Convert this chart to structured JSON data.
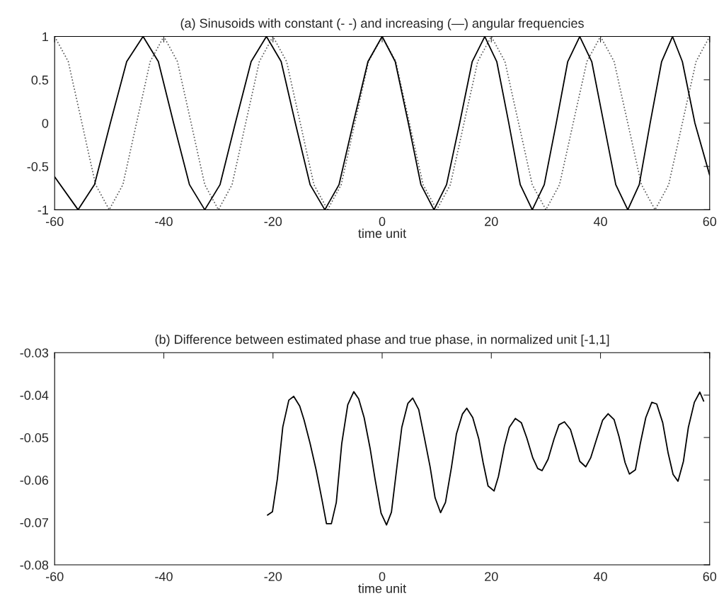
{
  "chart_data": [
    {
      "type": "line",
      "title": "(a) Sinusoids with constant (- -) and increasing (—) angular frequencies",
      "xlabel": "time unit",
      "xlim": [
        -60,
        60
      ],
      "ylim": [
        -1,
        1
      ],
      "xticks": [
        -60,
        -40,
        -20,
        0,
        20,
        40,
        60
      ],
      "yticks": [
        -1,
        -0.5,
        0,
        0.5,
        1
      ],
      "series": [
        {
          "color": "#555555",
          "line_style": "dotted",
          "x": [
            -60,
            -57.5,
            -55,
            -52.5,
            -50,
            -47.5,
            -45,
            -42.5,
            -40,
            -37.5,
            -35,
            -32.5,
            -30,
            -27.5,
            -25,
            -22.5,
            -20,
            -17.5,
            -15,
            -12.5,
            -10,
            -7.5,
            -5,
            -2.5,
            0,
            2.5,
            5,
            7.5,
            10,
            12.5,
            15,
            17.5,
            20,
            22.5,
            25,
            27.5,
            30,
            32.5,
            35,
            37.5,
            40,
            42.5,
            45,
            47.5,
            50,
            52.5,
            55,
            57.5,
            60
          ],
          "values": [
            1,
            0.71,
            0,
            -0.71,
            -1,
            -0.71,
            0,
            0.71,
            1,
            0.71,
            0,
            -0.71,
            -1,
            -0.71,
            0,
            0.71,
            1,
            0.71,
            0,
            -0.71,
            -1,
            -0.71,
            0,
            0.71,
            1,
            0.71,
            0,
            -0.71,
            -1,
            -0.71,
            0,
            0.71,
            1,
            0.71,
            0,
            -0.71,
            -1,
            -0.71,
            0,
            0.71,
            1,
            0.71,
            0,
            -0.71,
            -1,
            -0.71,
            0,
            0.71,
            1
          ]
        },
        {
          "color": "#000000",
          "line_style": "solid",
          "x": [
            -60,
            -55.7,
            -52.7,
            -49.8,
            -46.8,
            -43.8,
            -41.0,
            -38.2,
            -35.3,
            -32.5,
            -29.7,
            -26.9,
            -24.0,
            -21.2,
            -18.5,
            -15.9,
            -13.2,
            -10.5,
            -7.9,
            -5.3,
            -2.6,
            0,
            2.4,
            4.8,
            7.1,
            9.5,
            11.8,
            14.2,
            16.5,
            18.8,
            21.0,
            23.2,
            25.3,
            27.5,
            29.7,
            31.9,
            34.0,
            36.2,
            38.4,
            40.6,
            42.8,
            45,
            47.1,
            49.1,
            51.2,
            53.2,
            55.0,
            57.3,
            60
          ],
          "values": [
            -0.62,
            -1,
            -0.71,
            0,
            0.71,
            1,
            0.71,
            0,
            -0.71,
            -1,
            -0.71,
            0,
            0.71,
            1,
            0.71,
            0,
            -0.71,
            -1,
            -0.71,
            0,
            0.71,
            1,
            0.71,
            0,
            -0.71,
            -1,
            -0.71,
            0,
            0.71,
            1,
            0.71,
            0,
            -0.71,
            -1,
            -0.71,
            0,
            0.71,
            1,
            0.71,
            0,
            -0.71,
            -1,
            -0.71,
            0,
            0.71,
            1,
            0.71,
            0,
            -0.6
          ]
        }
      ]
    },
    {
      "type": "line",
      "title": "(b) Difference between estimated phase and true phase, in normalized unit [-1,1]",
      "xlabel": "time unit",
      "xlim": [
        -60,
        60
      ],
      "ylim": [
        -0.08,
        -0.03
      ],
      "xticks": [
        -60,
        -40,
        -20,
        0,
        20,
        40,
        60
      ],
      "yticks": [
        -0.08,
        -0.07,
        -0.06,
        -0.05,
        -0.04,
        -0.03
      ],
      "series": [
        {
          "color": "#000000",
          "line_style": "solid",
          "x": [
            -21.0,
            -20.1,
            -19.2,
            -18.2,
            -17.1,
            -16.2,
            -15.1,
            -14.3,
            -13.2,
            -12.1,
            -11.0,
            -10.2,
            -9.3,
            -8.4,
            -7.4,
            -6.3,
            -5.2,
            -4.3,
            -3.3,
            -2.2,
            -1.3,
            -0.2,
            0.8,
            1.7,
            2.8,
            3.6,
            4.7,
            5.6,
            6.7,
            7.7,
            8.8,
            9.7,
            10.7,
            11.6,
            12.7,
            13.6,
            14.7,
            15.5,
            16.6,
            17.7,
            18.5,
            19.4,
            20.5,
            21.3,
            22.4,
            23.3,
            24.4,
            25.5,
            26.5,
            27.6,
            28.5,
            29.3,
            30.4,
            31.5,
            32.4,
            33.4,
            34.5,
            35.4,
            36.2,
            37.3,
            38.2,
            39.3,
            40.4,
            41.4,
            42.5,
            43.4,
            44.5,
            45.3,
            46.4,
            47.3,
            48.3,
            49.4,
            50.3,
            51.4,
            52.4,
            53.3,
            54.2,
            55.2,
            56.1,
            57.2,
            58.2,
            58.9
          ],
          "values": [
            -0.0683,
            -0.0675,
            -0.0598,
            -0.0475,
            -0.0412,
            -0.0403,
            -0.0426,
            -0.0459,
            -0.0514,
            -0.0576,
            -0.0648,
            -0.0703,
            -0.0703,
            -0.0653,
            -0.0514,
            -0.0423,
            -0.0392,
            -0.0409,
            -0.0453,
            -0.0526,
            -0.0598,
            -0.0678,
            -0.0706,
            -0.0676,
            -0.0559,
            -0.0476,
            -0.042,
            -0.0407,
            -0.0434,
            -0.0498,
            -0.057,
            -0.0642,
            -0.0677,
            -0.0653,
            -0.057,
            -0.0492,
            -0.0445,
            -0.0431,
            -0.0453,
            -0.0503,
            -0.0559,
            -0.0614,
            -0.0626,
            -0.0592,
            -0.052,
            -0.0476,
            -0.0455,
            -0.0465,
            -0.0501,
            -0.0548,
            -0.0573,
            -0.0578,
            -0.0551,
            -0.0503,
            -0.047,
            -0.0463,
            -0.0481,
            -0.052,
            -0.0556,
            -0.0569,
            -0.0548,
            -0.0503,
            -0.0459,
            -0.0444,
            -0.0458,
            -0.0498,
            -0.0559,
            -0.0586,
            -0.0576,
            -0.0514,
            -0.0453,
            -0.0417,
            -0.0421,
            -0.0465,
            -0.0537,
            -0.0587,
            -0.0603,
            -0.0556,
            -0.0476,
            -0.0417,
            -0.0393,
            -0.0414
          ]
        }
      ]
    }
  ]
}
